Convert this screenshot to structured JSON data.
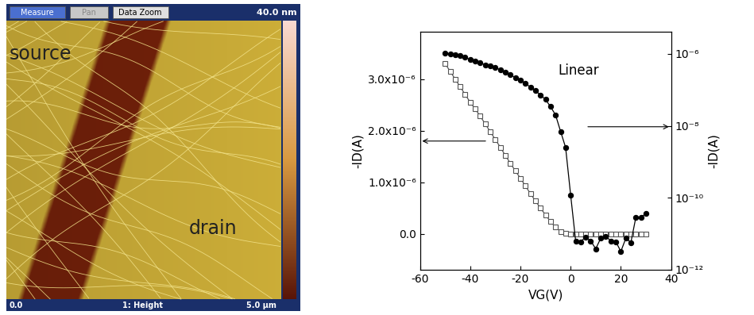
{
  "afm_image": {
    "toolbar": [
      "Measure",
      "Pan",
      "Data Zoom"
    ],
    "scale_max": "40.0 nm",
    "labels": {
      "left": "source",
      "right": "drain"
    },
    "footer": {
      "left": "0.0",
      "center": "1: Height",
      "right": "5.0 µm"
    }
  },
  "chart_data": {
    "type": "line",
    "xlabel": "VG(V)",
    "ylabel": "-ID(A)",
    "y2label": "-ID(A)",
    "annotation": "Linear",
    "xlim": [
      -60,
      40
    ],
    "xticks": [
      -60,
      -40,
      -20,
      0,
      20,
      40
    ],
    "ylim": [
      -6.9e-07,
      3.92e-06
    ],
    "yticks": [
      {
        "value": 0,
        "label": "0.0"
      },
      {
        "value": 1e-06,
        "label": "1.0x10⁻⁶"
      },
      {
        "value": 2e-06,
        "label": "2.0x10⁻⁶"
      },
      {
        "value": 3e-06,
        "label": "3.0x10⁻⁶"
      }
    ],
    "y2lim": [
      1e-12,
      4.2e-06
    ],
    "y2ticks": [
      {
        "value": 1e-12,
        "label": "10⁻¹²"
      },
      {
        "value": 1e-10,
        "label": "10⁻¹⁰"
      },
      {
        "value": 1e-08,
        "label": "10⁻⁸"
      },
      {
        "value": 1e-06,
        "label": "10⁻⁶"
      }
    ],
    "x": [
      -50,
      -48,
      -46,
      -44,
      -42,
      -40,
      -38,
      -36,
      -34,
      -32,
      -30,
      -28,
      -26,
      -24,
      -22,
      -20,
      -18,
      -16,
      -14,
      -12,
      -10,
      -8,
      -6,
      -4,
      -2,
      0,
      2,
      4,
      6,
      8,
      10,
      12,
      14,
      16,
      18,
      20,
      22,
      24,
      26,
      28,
      30
    ],
    "series": [
      {
        "color": "#555555",
        "marker": "square",
        "line_style": "solid",
        "values": [
          3.3e-06,
          3.15e-06,
          3e-06,
          2.85e-06,
          2.7e-06,
          2.55e-06,
          2.42e-06,
          2.28e-06,
          2.13e-06,
          1.98e-06,
          1.83e-06,
          1.68e-06,
          1.52e-06,
          1.37e-06,
          1.22e-06,
          1.08e-06,
          9.3e-07,
          7.8e-07,
          6.4e-07,
          5e-07,
          3.7e-07,
          2.4e-07,
          1.3e-07,
          5e-08,
          1e-08,
          0,
          0,
          0,
          0,
          0,
          0,
          0,
          0,
          0,
          0,
          0,
          0,
          0,
          0,
          0,
          0
        ]
      },
      {
        "color": "#000000",
        "marker": "circle",
        "line_style": "solid",
        "axis": "y2",
        "log": "y",
        "values": [
          1.05e-06,
          1e-06,
          9.5e-07,
          8.8e-07,
          8e-07,
          7e-07,
          6.3e-07,
          5.6e-07,
          5e-07,
          4.6e-07,
          4.2e-07,
          3.6e-07,
          3.1e-07,
          2.6e-07,
          2.2e-07,
          1.9e-07,
          1.5e-07,
          1.2e-07,
          9.5e-08,
          7.2e-08,
          5.4e-08,
          3.4e-08,
          2e-08,
          7e-09,
          2.5e-09,
          1.2e-10,
          6.3e-12,
          6e-12,
          8.1e-12,
          6.3e-12,
          3.8e-12,
          7.5e-12,
          8.5e-12,
          6.3e-12,
          6e-12,
          3.2e-12,
          7.5e-12,
          5.7e-12,
          2.9e-11,
          2.9e-11,
          3.6e-11
        ]
      }
    ]
  }
}
